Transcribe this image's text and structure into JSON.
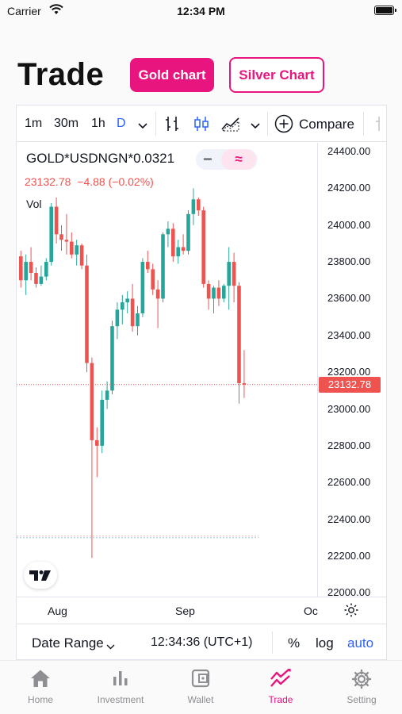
{
  "status_bar": {
    "carrier": "Carrier",
    "time": "12:34 PM"
  },
  "header": {
    "title": "Trade",
    "gold_button": "Gold chart",
    "silver_button": "Silver Chart"
  },
  "toolbar": {
    "intervals": [
      "1m",
      "30m",
      "1h",
      "D"
    ],
    "active_interval": "D",
    "icons": [
      "chevron-down-icon",
      "bar-style-icon",
      "candles-icon",
      "area-icon",
      "chevron-down-icon",
      "plus-circle-icon"
    ],
    "compare_label": "Compare"
  },
  "legend": {
    "symbol": "GOLD*USDNGN*0.0321",
    "price": "23132.78",
    "change": "−4.88 (−0.02%)",
    "vol_label": "Vol"
  },
  "price_axis": {
    "ticks": [
      "24400.00",
      "24200.00",
      "24000.00",
      "23800.00",
      "23600.00",
      "23400.00",
      "23200.00",
      "23000.00",
      "22800.00",
      "22600.00",
      "22400.00",
      "22200.00",
      "22000.00"
    ],
    "last_price": "23132.78"
  },
  "time_axis": {
    "ticks": [
      "Aug",
      "Sep",
      "Oc"
    ]
  },
  "bottom_bar": {
    "date_range": "Date Range",
    "time": "12:34:36 (UTC+1)",
    "percent": "%",
    "log": "log",
    "auto": "auto"
  },
  "colors": {
    "accent": "#e8157f",
    "up": "#26a69a",
    "down": "#ef5350",
    "auto": "#2962ff"
  },
  "tabs": [
    {
      "label": "Home",
      "icon": "home-icon",
      "active": false
    },
    {
      "label": "Investment",
      "icon": "bar-chart-icon",
      "active": false
    },
    {
      "label": "Wallet",
      "icon": "wallet-icon",
      "active": false
    },
    {
      "label": "Trade",
      "icon": "trend-icon",
      "active": true
    },
    {
      "label": "Setting",
      "icon": "gear-icon",
      "active": false
    }
  ],
  "chart_data": {
    "type": "candlestick",
    "ylim": [
      22000,
      24450
    ],
    "last_price": 23132.78,
    "reference_price": 22300,
    "x_ticks": [
      "Aug",
      "Sep",
      "Oc"
    ],
    "candles": [
      {
        "o": 23830,
        "h": 23860,
        "l": 23660,
        "c": 23700
      },
      {
        "o": 23700,
        "h": 23840,
        "l": 23620,
        "c": 23800
      },
      {
        "o": 23800,
        "h": 23880,
        "l": 23700,
        "c": 23740
      },
      {
        "o": 23740,
        "h": 23770,
        "l": 23660,
        "c": 23680
      },
      {
        "o": 23680,
        "h": 23780,
        "l": 23670,
        "c": 23720
      },
      {
        "o": 23720,
        "h": 23820,
        "l": 23700,
        "c": 23800
      },
      {
        "o": 23800,
        "h": 24120,
        "l": 23780,
        "c": 24100
      },
      {
        "o": 24100,
        "h": 24150,
        "l": 23900,
        "c": 23950
      },
      {
        "o": 23950,
        "h": 24000,
        "l": 23860,
        "c": 23920
      },
      {
        "o": 23920,
        "h": 24060,
        "l": 23840,
        "c": 23910
      },
      {
        "o": 23910,
        "h": 23960,
        "l": 23820,
        "c": 23840
      },
      {
        "o": 23840,
        "h": 23920,
        "l": 23780,
        "c": 23890
      },
      {
        "o": 23890,
        "h": 23900,
        "l": 23760,
        "c": 23780
      },
      {
        "o": 23780,
        "h": 23840,
        "l": 23200,
        "c": 23250
      },
      {
        "o": 23250,
        "h": 23280,
        "l": 22190,
        "c": 22830
      },
      {
        "o": 22830,
        "h": 22900,
        "l": 22630,
        "c": 22800
      },
      {
        "o": 22800,
        "h": 23100,
        "l": 22760,
        "c": 23050
      },
      {
        "o": 23050,
        "h": 23150,
        "l": 23000,
        "c": 23100
      },
      {
        "o": 23100,
        "h": 23480,
        "l": 23080,
        "c": 23450
      },
      {
        "o": 23450,
        "h": 23580,
        "l": 23380,
        "c": 23540
      },
      {
        "o": 23540,
        "h": 23620,
        "l": 23460,
        "c": 23580
      },
      {
        "o": 23580,
        "h": 23640,
        "l": 23520,
        "c": 23600
      },
      {
        "o": 23600,
        "h": 23680,
        "l": 23420,
        "c": 23450
      },
      {
        "o": 23450,
        "h": 23560,
        "l": 23400,
        "c": 23520
      },
      {
        "o": 23520,
        "h": 23820,
        "l": 23500,
        "c": 23800
      },
      {
        "o": 23800,
        "h": 23860,
        "l": 23740,
        "c": 23760
      },
      {
        "o": 23760,
        "h": 23790,
        "l": 23620,
        "c": 23650
      },
      {
        "o": 23650,
        "h": 23700,
        "l": 23440,
        "c": 23600
      },
      {
        "o": 23600,
        "h": 23960,
        "l": 23580,
        "c": 23950
      },
      {
        "o": 23950,
        "h": 24020,
        "l": 23880,
        "c": 23980
      },
      {
        "o": 23980,
        "h": 24010,
        "l": 23800,
        "c": 23830
      },
      {
        "o": 23830,
        "h": 23920,
        "l": 23790,
        "c": 23880
      },
      {
        "o": 23880,
        "h": 23950,
        "l": 23840,
        "c": 23860
      },
      {
        "o": 23860,
        "h": 24080,
        "l": 23840,
        "c": 24060
      },
      {
        "o": 24060,
        "h": 24200,
        "l": 24000,
        "c": 24140
      },
      {
        "o": 24140,
        "h": 24150,
        "l": 24050,
        "c": 24080
      },
      {
        "o": 24080,
        "h": 24100,
        "l": 23660,
        "c": 23680
      },
      {
        "o": 23680,
        "h": 23700,
        "l": 23540,
        "c": 23600
      },
      {
        "o": 23600,
        "h": 23670,
        "l": 23520,
        "c": 23660
      },
      {
        "o": 23660,
        "h": 23700,
        "l": 23560,
        "c": 23600
      },
      {
        "o": 23600,
        "h": 23680,
        "l": 23580,
        "c": 23670
      },
      {
        "o": 23670,
        "h": 23880,
        "l": 23540,
        "c": 23800
      },
      {
        "o": 23800,
        "h": 23850,
        "l": 23580,
        "c": 23670
      },
      {
        "o": 23670,
        "h": 23690,
        "l": 23030,
        "c": 23140
      },
      {
        "o": 23140,
        "h": 23320,
        "l": 23060,
        "c": 23132.78
      }
    ]
  }
}
